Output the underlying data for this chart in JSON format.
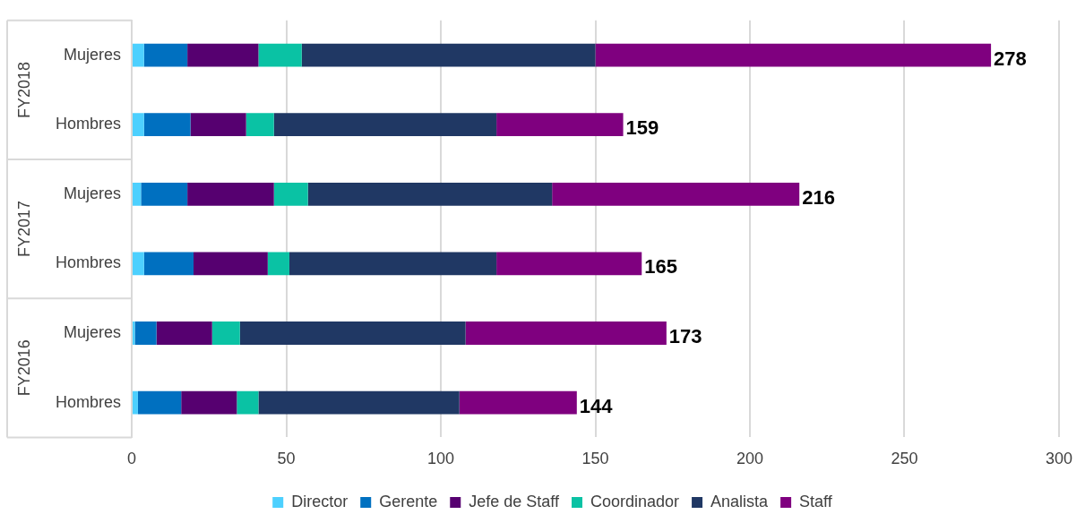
{
  "chart_data": {
    "type": "bar",
    "orientation": "horizontal",
    "stacked": true,
    "categories": [
      "Mujeres",
      "Hombres",
      "Mujeres",
      "Hombres",
      "Mujeres",
      "Hombres"
    ],
    "series": [
      {
        "name": "Director",
        "color": "#4dd0fe",
        "values": [
          4,
          4,
          3,
          4,
          1,
          2
        ]
      },
      {
        "name": "Gerente",
        "color": "#0070c0",
        "values": [
          14,
          15,
          15,
          16,
          7,
          14
        ]
      },
      {
        "name": "Jefe de Staff",
        "color": "#560070",
        "values": [
          23,
          18,
          28,
          24,
          18,
          18
        ]
      },
      {
        "name": "Coordinador",
        "color": "#0ac2a4",
        "values": [
          14,
          9,
          11,
          7,
          9,
          7
        ]
      },
      {
        "name": "Analista",
        "color": "#203864",
        "values": [
          95,
          72,
          79,
          67,
          73,
          65
        ]
      },
      {
        "name": "Staff",
        "color": "#7f007f",
        "values": [
          128,
          41,
          80,
          47,
          65,
          38
        ]
      }
    ],
    "totals": [
      "278",
      "159",
      "216",
      "165",
      "173",
      "144"
    ],
    "annotations": [
      "FY2018",
      "FY2017",
      "FY2016"
    ],
    "xlim": [
      0,
      300
    ],
    "xticks": [
      0,
      50,
      100,
      150,
      200,
      250,
      300
    ],
    "grid": "x",
    "legend": "bottom"
  }
}
